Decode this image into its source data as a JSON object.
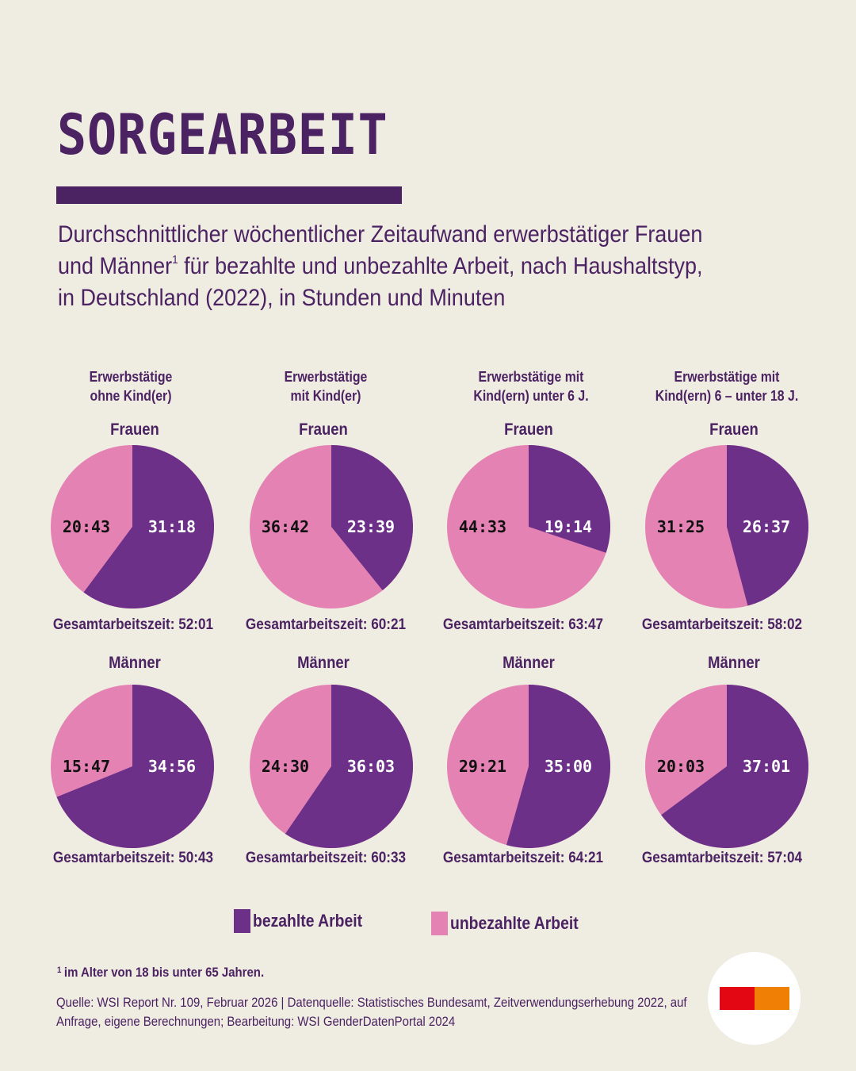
{
  "header": {
    "title": "SORGEARBEIT",
    "subtitle_line1": "Durchschnittlicher wöchentlicher Zeitaufwand erwerbstätiger Frauen",
    "subtitle_line2_a": "und Männer",
    "subtitle_line2_sup": "1",
    "subtitle_line2_b": " für bezahlte und unbezahlte Arbeit, nach Haushaltstyp,",
    "subtitle_line3": "in Deutschland (2022), in Stunden und Minuten"
  },
  "colors": {
    "background": "#efece1",
    "text": "#4b2262",
    "paid": "#6c3088",
    "unpaid": "#e482b3",
    "logo_red": "#e30613",
    "logo_orange": "#f08005"
  },
  "columns": [
    {
      "line1": "Erwerbstätige",
      "line2": "ohne Kind(er)"
    },
    {
      "line1": "Erwerbstätige",
      "line2": "mit Kind(er)"
    },
    {
      "line1": "Erwerbstätige mit",
      "line2": "Kind(ern) unter 6 J."
    },
    {
      "line1": "Erwerbstätige mit",
      "line2": "Kind(ern) 6 – unter 18 J."
    }
  ],
  "rows": [
    {
      "label": "Frauen"
    },
    {
      "label": "Männer"
    }
  ],
  "total_prefix": "Gesamtarbeitszeit: ",
  "legend": {
    "paid": "bezahlte Arbeit",
    "unpaid": "unbezahlte Arbeit"
  },
  "footnote": {
    "marker": "1",
    "text": "im Alter von 18 bis unter 65 Jahren."
  },
  "source": "Quelle: WSI Report Nr. 109, Februar 2026 | Datenquelle: Statistisches Bundesamt, Zeitverwendungserhebung 2022, auf Anfrage, eigene Berechnungen; Bearbeitung: WSI GenderDatenPortal 2024",
  "chart_data": {
    "type": "pie",
    "title": "Durchschnittlicher wöchentlicher Zeitaufwand erwerbstätiger Frauen und Männer für bezahlte und unbezahlte Arbeit, nach Haushaltstyp, in Deutschland (2022), in Stunden und Minuten",
    "legend_position": "bottom",
    "series_names": [
      "bezahlte Arbeit",
      "unbezahlte Arbeit"
    ],
    "units": "hh:mm per week",
    "pies": [
      {
        "group": "Frauen",
        "household": "Erwerbstätige ohne Kind(er)",
        "paid": "31:18",
        "unpaid": "20:43",
        "total": "52:01"
      },
      {
        "group": "Frauen",
        "household": "Erwerbstätige mit Kind(er)",
        "paid": "23:39",
        "unpaid": "36:42",
        "total": "60:21"
      },
      {
        "group": "Frauen",
        "household": "Erwerbstätige mit Kind(ern) unter 6 J.",
        "paid": "19:14",
        "unpaid": "44:33",
        "total": "63:47"
      },
      {
        "group": "Frauen",
        "household": "Erwerbstätige mit Kind(ern) 6 – unter 18 J.",
        "paid": "26:37",
        "unpaid": "31:25",
        "total": "58:02"
      },
      {
        "group": "Männer",
        "household": "Erwerbstätige ohne Kind(er)",
        "paid": "34:56",
        "unpaid": "15:47",
        "total": "50:43"
      },
      {
        "group": "Männer",
        "household": "Erwerbstätige mit Kind(er)",
        "paid": "36:03",
        "unpaid": "24:30",
        "total": "60:33"
      },
      {
        "group": "Männer",
        "household": "Erwerbstätige mit Kind(ern) unter 6 J.",
        "paid": "35:00",
        "unpaid": "29:21",
        "total": "64:21"
      },
      {
        "group": "Männer",
        "household": "Erwerbstätige mit Kind(ern) 6 – unter 18 J.",
        "paid": "37:01",
        "unpaid": "20:03",
        "total": "57:04"
      }
    ]
  }
}
